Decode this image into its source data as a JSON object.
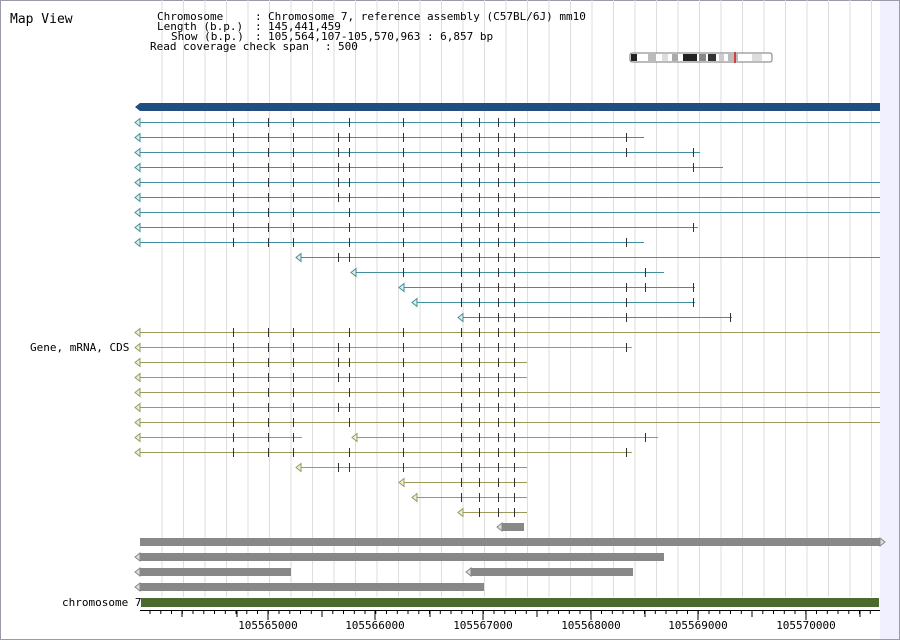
{
  "view": {
    "title": "Map View",
    "info": {
      "chromosome": {
        "label": "Chromosome",
        "value": "Chromosome 7, reference assembly (C57BL/6J) mm10"
      },
      "length": {
        "label": "Length (b.p.)",
        "value": "145,441,459"
      },
      "show": {
        "label": "Show (b.p.)",
        "value": "105,564,107-105,570,963 : 6,857 bp"
      },
      "coverage": {
        "label": "Read coverage check span",
        "value": "500"
      }
    },
    "track_labels": {
      "genes": "Gene, mRNA, CDS",
      "chromosome": "chromosome 7"
    },
    "axis": {
      "ticks": [
        "105565000",
        "105566000",
        "105567000",
        "105568000",
        "105569000",
        "105570000"
      ]
    },
    "colors": {
      "gene_bar": "#1f4e80",
      "mrna": "#3f8fa0",
      "cds": "#9a9a5a",
      "other": "#888888",
      "chromosome_bar": "#4a6a2e",
      "gridline": "#dddddd",
      "ideogram_highlight": "#d04040"
    }
  }
}
